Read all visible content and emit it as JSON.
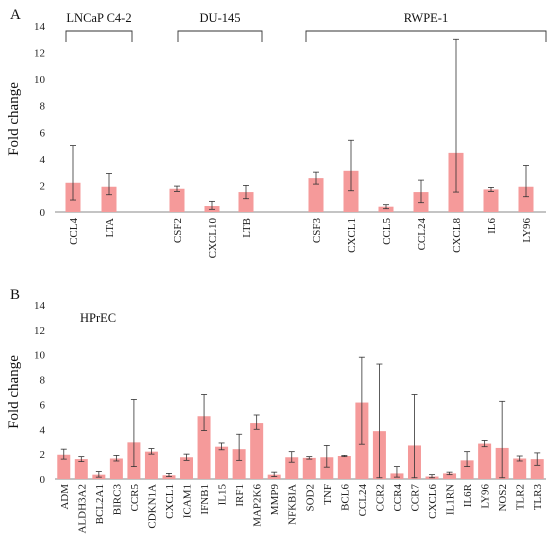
{
  "chart_data": [
    {
      "type": "bar",
      "panel_label": "A",
      "ylabel": "Fold change",
      "ylim": [
        0,
        14
      ],
      "yticks": [
        0,
        2,
        4,
        6,
        8,
        10,
        12,
        14
      ],
      "grid": false,
      "bar_color": "#f59a9a",
      "groups": [
        {
          "label": "LNCaP C4-2",
          "categories": [
            "CCL4",
            "LTA"
          ]
        },
        {
          "label": "DU-145",
          "categories": [
            "CSF2",
            "CXCL10",
            "LTB"
          ]
        },
        {
          "label": "RWPE-1",
          "categories": [
            "CSF3",
            "CXCL1",
            "CCL5",
            "CCL24",
            "CXCL8",
            "IL6",
            "LY96"
          ]
        }
      ],
      "categories": [
        "CCL4",
        "LTA",
        "CSF2",
        "CXCL10",
        "LTB",
        "CSF3",
        "CXCL1",
        "CCL5",
        "CCL24",
        "CXCL8",
        "IL6",
        "LY96"
      ],
      "values": [
        2.2,
        1.9,
        1.75,
        0.45,
        1.5,
        2.55,
        3.1,
        0.4,
        1.5,
        4.45,
        1.7,
        1.9
      ],
      "error_low": [
        0.9,
        1.3,
        1.55,
        0.2,
        1.0,
        2.1,
        1.6,
        0.25,
        0.7,
        1.5,
        1.55,
        1.15
      ],
      "error_high": [
        5.0,
        2.9,
        1.95,
        0.8,
        2.0,
        3.0,
        5.4,
        0.55,
        2.4,
        13.0,
        1.85,
        3.5
      ]
    },
    {
      "type": "bar",
      "panel_label": "B",
      "ylabel": "Fold change",
      "ylim": [
        0,
        14
      ],
      "yticks": [
        0,
        2,
        4,
        6,
        8,
        10,
        12,
        14
      ],
      "grid": false,
      "bar_color": "#f59a9a",
      "groups": [
        {
          "label": "HPrEC",
          "categories": [
            "ADM",
            "ALDH3A2",
            "BCL2A1",
            "BIRC3",
            "CCR5",
            "CDKN1A",
            "CXCL1",
            "ICAM1",
            "IFNB1",
            "IL15",
            "IRF1",
            "MAP2K6",
            "MMP9",
            "NFKBIA",
            "SOD2",
            "TNF",
            "BCL6",
            "CCL24",
            "CCR2",
            "CCR4",
            "CCR7",
            "CXCL6",
            "IL1RN",
            "IL6R",
            "LY96",
            "NOS2",
            "TLR2",
            "TLR3"
          ]
        }
      ],
      "categories": [
        "ADM",
        "ALDH3A2",
        "BCL2A1",
        "BIRC3",
        "CCR5",
        "CDKN1A",
        "CXCL1",
        "ICAM1",
        "IFNB1",
        "IL15",
        "IRF1",
        "MAP2K6",
        "MMP9",
        "NFKBIA",
        "SOD2",
        "TNF",
        "BCL6",
        "CCL24",
        "CCR2",
        "CCR4",
        "CCR7",
        "CXCL6",
        "IL1RN",
        "IL6R",
        "LY96",
        "NOS2",
        "TLR2",
        "TLR3"
      ],
      "values": [
        1.95,
        1.6,
        0.35,
        1.65,
        2.95,
        2.2,
        0.3,
        1.75,
        5.05,
        2.6,
        2.4,
        4.5,
        0.35,
        1.75,
        1.7,
        1.75,
        1.85,
        6.15,
        3.85,
        0.45,
        2.7,
        0.2,
        0.45,
        1.5,
        2.85,
        2.5,
        1.65,
        1.6
      ],
      "error_low": [
        1.6,
        1.4,
        0.15,
        1.45,
        1.0,
        2.0,
        0.2,
        1.5,
        3.9,
        2.35,
        1.5,
        4.0,
        0.2,
        1.35,
        1.6,
        0.95,
        1.8,
        2.8,
        0.1,
        0.15,
        0.1,
        0.1,
        0.35,
        1.0,
        2.6,
        0.1,
        1.45,
        1.1
      ],
      "error_high": [
        2.4,
        1.8,
        0.6,
        1.9,
        6.4,
        2.45,
        0.45,
        2.0,
        6.8,
        2.9,
        3.6,
        5.15,
        0.55,
        2.2,
        1.8,
        2.7,
        1.9,
        9.8,
        9.25,
        1.0,
        6.8,
        0.35,
        0.55,
        2.2,
        3.1,
        6.25,
        1.85,
        2.1
      ]
    }
  ]
}
